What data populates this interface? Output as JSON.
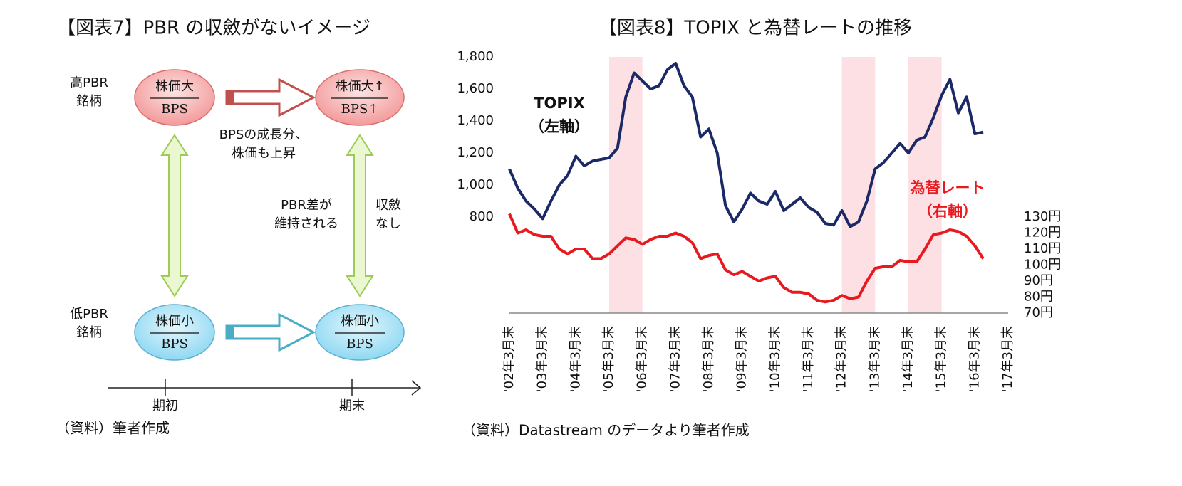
{
  "diagram": {
    "title": "【図表7】PBR の収斂がないイメージ",
    "high_label": [
      "高PBR",
      "銘柄"
    ],
    "low_label": [
      "低PBR",
      "銘柄"
    ],
    "nodes": [
      {
        "numerator": "株価大",
        "denominator": "BPS"
      },
      {
        "numerator": "株価大↑",
        "denominator": "BPS↑"
      },
      {
        "numerator": "株価小",
        "denominator": "BPS"
      },
      {
        "numerator": "株価小",
        "denominator": "BPS"
      }
    ],
    "growth_note": [
      "BPSの成長分、",
      "株価も上昇"
    ],
    "gap_note": [
      "PBR差が",
      "維持される"
    ],
    "convergence_note": [
      "収斂",
      "なし"
    ],
    "timeline": [
      "期初",
      "期末"
    ],
    "source": "（資料）筆者作成"
  },
  "chart_data": {
    "type": "line",
    "title": "【図表8】TOPIX と為替レートの推移",
    "source": "（資料）Datastream のデータより筆者作成",
    "x": [
      2002.25,
      2002.5,
      2002.75,
      2003.0,
      2003.25,
      2003.5,
      2003.75,
      2004.0,
      2004.25,
      2004.5,
      2004.75,
      2005.0,
      2005.25,
      2005.5,
      2005.75,
      2006.0,
      2006.25,
      2006.5,
      2006.75,
      2007.0,
      2007.25,
      2007.5,
      2007.75,
      2008.0,
      2008.25,
      2008.5,
      2008.75,
      2009.0,
      2009.25,
      2009.5,
      2009.75,
      2010.0,
      2010.25,
      2010.5,
      2010.75,
      2011.0,
      2011.25,
      2011.5,
      2011.75,
      2012.0,
      2012.25,
      2012.5,
      2012.75,
      2013.0,
      2013.25,
      2013.5,
      2013.75,
      2014.0,
      2014.25,
      2014.5,
      2014.75,
      2015.0,
      2015.25,
      2015.5,
      2015.75,
      2016.0,
      2016.25,
      2016.5
    ],
    "series": [
      {
        "name": "TOPIX",
        "axis_note": "（左軸）",
        "color": "#1b2a66",
        "axis": "y",
        "values": [
          1100,
          980,
          900,
          850,
          790,
          900,
          1000,
          1060,
          1180,
          1120,
          1150,
          1160,
          1170,
          1230,
          1550,
          1700,
          1650,
          1600,
          1620,
          1720,
          1760,
          1620,
          1550,
          1300,
          1350,
          1200,
          870,
          770,
          850,
          950,
          900,
          880,
          960,
          840,
          880,
          920,
          860,
          830,
          760,
          750,
          840,
          740,
          770,
          900,
          1100,
          1140,
          1200,
          1260,
          1200,
          1280,
          1300,
          1420,
          1560,
          1660,
          1450,
          1550,
          1320,
          1330
        ]
      },
      {
        "name": "為替レート",
        "axis_note": "（右軸）",
        "color": "#e8191f",
        "axis": "y2",
        "values": [
          132,
          120,
          122,
          119,
          118,
          118,
          110,
          107,
          110,
          110,
          104,
          104,
          107,
          112,
          117,
          116,
          113,
          116,
          118,
          118,
          120,
          118,
          114,
          104,
          106,
          107,
          97,
          94,
          96,
          93,
          90,
          92,
          93,
          86,
          83,
          83,
          82,
          78,
          77,
          78,
          81,
          79,
          80,
          90,
          98,
          99,
          99,
          103,
          102,
          102,
          110,
          119,
          120,
          122,
          121,
          118,
          112,
          104
        ]
      }
    ],
    "xlim": [
      2002.25,
      2017.25
    ],
    "xticks": [
      {
        "value": 2002.25,
        "label": "'02年3月末"
      },
      {
        "value": 2003.25,
        "label": "'03年3月末"
      },
      {
        "value": 2004.25,
        "label": "'04年3月末"
      },
      {
        "value": 2005.25,
        "label": "'05年3月末"
      },
      {
        "value": 2006.25,
        "label": "'06年3月末"
      },
      {
        "value": 2007.25,
        "label": "'07年3月末"
      },
      {
        "value": 2008.25,
        "label": "'08年3月末"
      },
      {
        "value": 2009.25,
        "label": "'09年3月末"
      },
      {
        "value": 2010.25,
        "label": "'10年3月末"
      },
      {
        "value": 2011.25,
        "label": "'11年3月末"
      },
      {
        "value": 2012.25,
        "label": "'12年3月末"
      },
      {
        "value": 2013.25,
        "label": "'13年3月末"
      },
      {
        "value": 2014.25,
        "label": "'14年3月末"
      },
      {
        "value": 2015.25,
        "label": "'15年3月末"
      },
      {
        "value": 2016.25,
        "label": "'16年3月末"
      },
      {
        "value": 2017.25,
        "label": "'17年3月末"
      }
    ],
    "ylim": [
      200,
      1800
    ],
    "yticks": [
      {
        "value": 800,
        "label": "800"
      },
      {
        "value": 1000,
        "label": "1,000"
      },
      {
        "value": 1200,
        "label": "1,200"
      },
      {
        "value": 1400,
        "label": "1,400"
      },
      {
        "value": 1600,
        "label": "1,600"
      },
      {
        "value": 1800,
        "label": "1,800"
      }
    ],
    "y2lim": [
      70,
      230
    ],
    "y2ticks": [
      {
        "value": 70,
        "label": "70円"
      },
      {
        "value": 80,
        "label": "80円"
      },
      {
        "value": 90,
        "label": "90円"
      },
      {
        "value": 100,
        "label": "100円"
      },
      {
        "value": 110,
        "label": "110円"
      },
      {
        "value": 120,
        "label": "120円"
      },
      {
        "value": 130,
        "label": "130円"
      }
    ],
    "shaded_periods": [
      [
        2005.25,
        2006.25
      ],
      [
        2012.25,
        2013.25
      ],
      [
        2014.25,
        2015.25
      ]
    ],
    "shade_color": "#fde0e4",
    "grid": false
  }
}
